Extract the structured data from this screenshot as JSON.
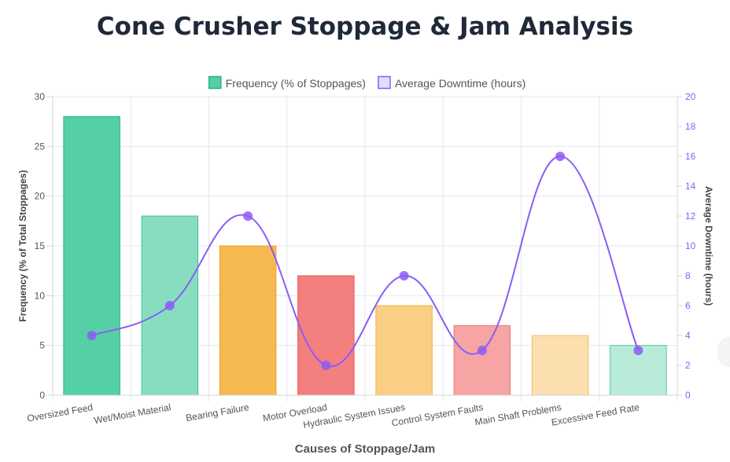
{
  "page": {
    "title": "Cone Crusher Stoppage & Jam Analysis"
  },
  "chart_data": {
    "type": "bar",
    "title": "Cone Crusher Stoppage & Jam Analysis",
    "xlabel": "Causes of Stoppage/Jam",
    "ylabel": "Frequency (% of Total Stoppages)",
    "y2label": "Average Downtime (hours)",
    "ylim": [
      0,
      30
    ],
    "y2lim": [
      0,
      20
    ],
    "yticks": [
      "0",
      "5",
      "10",
      "15",
      "20",
      "25",
      "30"
    ],
    "y2ticks": [
      "0",
      "2",
      "4",
      "6",
      "8",
      "10",
      "12",
      "14",
      "16",
      "18",
      "20"
    ],
    "grid": true,
    "legend_position": "top-center",
    "categories": [
      "Oversized Feed",
      "Wet/Moist Material",
      "Bearing Failure",
      "Motor Overload",
      "Hydraulic System Issues",
      "Control System Faults",
      "Main Shaft Problems",
      "Excessive Feed Rate"
    ],
    "series": [
      {
        "name": "Frequency (% of Stoppages)",
        "type": "bar",
        "axis": "left",
        "values": [
          28,
          18,
          15,
          12,
          9,
          7,
          6,
          5
        ],
        "fill_colors": [
          "#55cfa6",
          "#88ddc1",
          "#f6b851",
          "#f37f7f",
          "#f9cf86",
          "#f6a4a4",
          "#fbdfae",
          "#b8ecd9"
        ],
        "border_colors": [
          "#22b380",
          "#3cc192",
          "#f0a020",
          "#e85656",
          "#f2b33c",
          "#e57a7a",
          "#f4bf60",
          "#53c99a"
        ]
      },
      {
        "name": "Average Downtime (hours)",
        "type": "line",
        "axis": "right",
        "values": [
          4,
          6,
          12,
          2,
          8,
          3,
          16,
          3
        ],
        "color": "#8b5cf6"
      }
    ],
    "legend": [
      {
        "label": "Frequency (% of Stoppages)",
        "fill": "#55cfa6",
        "border": "#22b380"
      },
      {
        "label": "Average Downtime (hours)",
        "fill": "#e4dcfc",
        "border": "#8b5cf6"
      }
    ]
  }
}
